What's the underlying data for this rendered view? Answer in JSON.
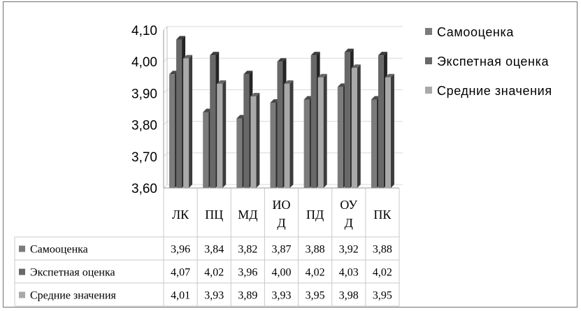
{
  "chart_data": {
    "type": "bar",
    "title": "",
    "xlabel": "",
    "ylabel": "",
    "categories": [
      "ЛК",
      "ПЦ",
      "МД",
      "ИОД",
      "ПД",
      "ОУД",
      "ПК"
    ],
    "category_lines": [
      [
        "ЛК"
      ],
      [
        "ПЦ"
      ],
      [
        "МД"
      ],
      [
        "ИО",
        "Д"
      ],
      [
        "ПД"
      ],
      [
        "ОУ",
        "Д"
      ],
      [
        "ПК"
      ]
    ],
    "series": [
      {
        "name": "Самооценка",
        "values": [
          3.96,
          3.84,
          3.82,
          3.87,
          3.88,
          3.92,
          3.88
        ],
        "labels": [
          "3,96",
          "3,84",
          "3,82",
          "3,87",
          "3,88",
          "3,92",
          "3,88"
        ],
        "color": "#7b7b7b"
      },
      {
        "name": "Экспетная оценка",
        "values": [
          4.07,
          4.02,
          3.96,
          4.0,
          4.02,
          4.03,
          4.02
        ],
        "labels": [
          "4,07",
          "4,02",
          "3,96",
          "4,00",
          "4,02",
          "4,03",
          "4,02"
        ],
        "color": "#686868"
      },
      {
        "name": "Средние значения",
        "values": [
          4.01,
          3.93,
          3.89,
          3.93,
          3.95,
          3.98,
          3.95
        ],
        "labels": [
          "4,01",
          "3,93",
          "3,89",
          "3,93",
          "3,95",
          "3,98",
          "3,95"
        ],
        "color": "#a9a9a9"
      }
    ],
    "ylim": [
      3.6,
      4.1
    ],
    "yticks": [
      3.6,
      3.7,
      3.8,
      3.9,
      4.0,
      4.1
    ],
    "ytick_labels": [
      "3,60",
      "3,70",
      "3,80",
      "3,90",
      "4,00",
      "4,10"
    ],
    "grid": true,
    "legend_position": "right",
    "data_table": true
  }
}
